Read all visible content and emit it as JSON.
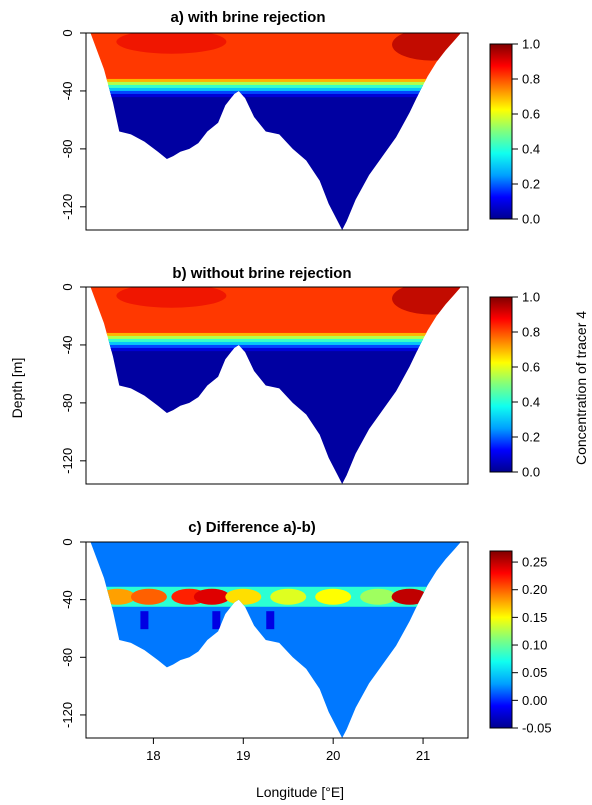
{
  "figure": {
    "shared_ylabel": "Depth [m]",
    "shared_colorbar_label": "Concentration of tracer 4",
    "xlabel": "Longitude [°E]"
  },
  "chart_data": [
    {
      "type": "heatmap",
      "panel": "a",
      "title": "a) with brine rejection",
      "xlabel": "",
      "ylabel": "Depth [m]",
      "x_range": [
        17.25,
        21.5
      ],
      "y_range": [
        -136,
        0
      ],
      "x_ticks": [],
      "y_ticks": [
        0,
        -40,
        -80,
        -120
      ],
      "y_tick_labels": [
        "0",
        "-40",
        "-80",
        "-120"
      ],
      "colorbar": {
        "label": "Concentration of tracer 4",
        "range": [
          0.0,
          1.0
        ],
        "ticks": [
          0.0,
          0.2,
          0.4,
          0.6,
          0.8,
          1.0
        ],
        "tick_labels": [
          "0.0",
          "0.2",
          "0.4",
          "0.6",
          "0.8",
          "1.0"
        ],
        "colors": [
          "#00008f",
          "#0000ff",
          "#00a0ff",
          "#10ffef",
          "#7fff7f",
          "#ffff00",
          "#ff8000",
          "#ff0000",
          "#800000"
        ]
      },
      "field": {
        "upper_layer_value": 0.9,
        "interface_depth": -40,
        "lower_layer_value": 0.0
      }
    },
    {
      "type": "heatmap",
      "panel": "b",
      "title": "b) without brine rejection",
      "xlabel": "",
      "ylabel": "Depth [m]",
      "x_range": [
        17.25,
        21.5
      ],
      "y_range": [
        -136,
        0
      ],
      "x_ticks": [],
      "y_ticks": [
        0,
        -40,
        -80,
        -120
      ],
      "y_tick_labels": [
        "0",
        "-40",
        "-80",
        "-120"
      ],
      "colorbar": {
        "label": "Concentration of tracer 4",
        "range": [
          0.0,
          1.0
        ],
        "ticks": [
          0.0,
          0.2,
          0.4,
          0.6,
          0.8,
          1.0
        ],
        "tick_labels": [
          "0.0",
          "0.2",
          "0.4",
          "0.6",
          "0.8",
          "1.0"
        ],
        "colors": [
          "#00008f",
          "#0000ff",
          "#00a0ff",
          "#10ffef",
          "#7fff7f",
          "#ffff00",
          "#ff8000",
          "#ff0000",
          "#800000"
        ]
      },
      "field": {
        "upper_layer_value": 0.9,
        "interface_depth": -40,
        "lower_layer_value": 0.0
      }
    },
    {
      "type": "heatmap",
      "panel": "c",
      "title": "c) Difference a)-b)",
      "xlabel": "Longitude [°E]",
      "ylabel": "Depth [m]",
      "x_range": [
        17.25,
        21.5
      ],
      "y_range": [
        -136,
        0
      ],
      "x_ticks": [
        18,
        19,
        20,
        21
      ],
      "x_tick_labels": [
        "18",
        "19",
        "20",
        "21"
      ],
      "y_ticks": [
        0,
        -40,
        -80,
        -120
      ],
      "y_tick_labels": [
        "0",
        "-40",
        "-80",
        "-120"
      ],
      "colorbar": {
        "range": [
          -0.05,
          0.27
        ],
        "ticks": [
          -0.05,
          0.0,
          0.05,
          0.1,
          0.15,
          0.2,
          0.25
        ],
        "tick_labels": [
          "-0.05",
          "0.00",
          "0.05",
          "0.10",
          "0.15",
          "0.20",
          "0.25"
        ],
        "colors": [
          "#00008f",
          "#0000ff",
          "#00a0ff",
          "#10ffef",
          "#7fff7f",
          "#ffff00",
          "#ff8000",
          "#ff0000",
          "#800000"
        ]
      },
      "field": {
        "background_value": 0.02,
        "peak_band_depth": -38,
        "peak_values": [
          {
            "lon": 17.6,
            "value": 0.18
          },
          {
            "lon": 17.95,
            "value": 0.2
          },
          {
            "lon": 18.4,
            "value": 0.22
          },
          {
            "lon": 18.65,
            "value": 0.24
          },
          {
            "lon": 19.0,
            "value": 0.16
          },
          {
            "lon": 19.5,
            "value": 0.14
          },
          {
            "lon": 20.0,
            "value": 0.15
          },
          {
            "lon": 20.5,
            "value": 0.12
          },
          {
            "lon": 20.85,
            "value": 0.25
          }
        ]
      }
    }
  ],
  "bathymetry": {
    "lon": [
      17.3,
      17.45,
      17.55,
      17.62,
      17.75,
      17.9,
      18.05,
      18.15,
      18.22,
      18.3,
      18.4,
      18.5,
      18.6,
      18.72,
      18.8,
      18.9,
      18.95,
      19.02,
      19.12,
      19.25,
      19.4,
      19.55,
      19.7,
      19.85,
      19.95,
      20.05,
      20.1,
      20.15,
      20.25,
      20.4,
      20.55,
      20.7,
      20.85,
      20.95,
      21.05,
      21.15,
      21.25,
      21.35,
      21.42
    ],
    "depth": [
      0,
      -25,
      -48,
      -68,
      -70,
      -75,
      -82,
      -87,
      -85,
      -82,
      -80,
      -76,
      -68,
      -62,
      -50,
      -42,
      -40,
      -45,
      -58,
      -68,
      -70,
      -80,
      -88,
      -102,
      -118,
      -130,
      -136,
      -130,
      -115,
      -98,
      -85,
      -72,
      -55,
      -42,
      -30,
      -20,
      -12,
      -5,
      0
    ]
  }
}
